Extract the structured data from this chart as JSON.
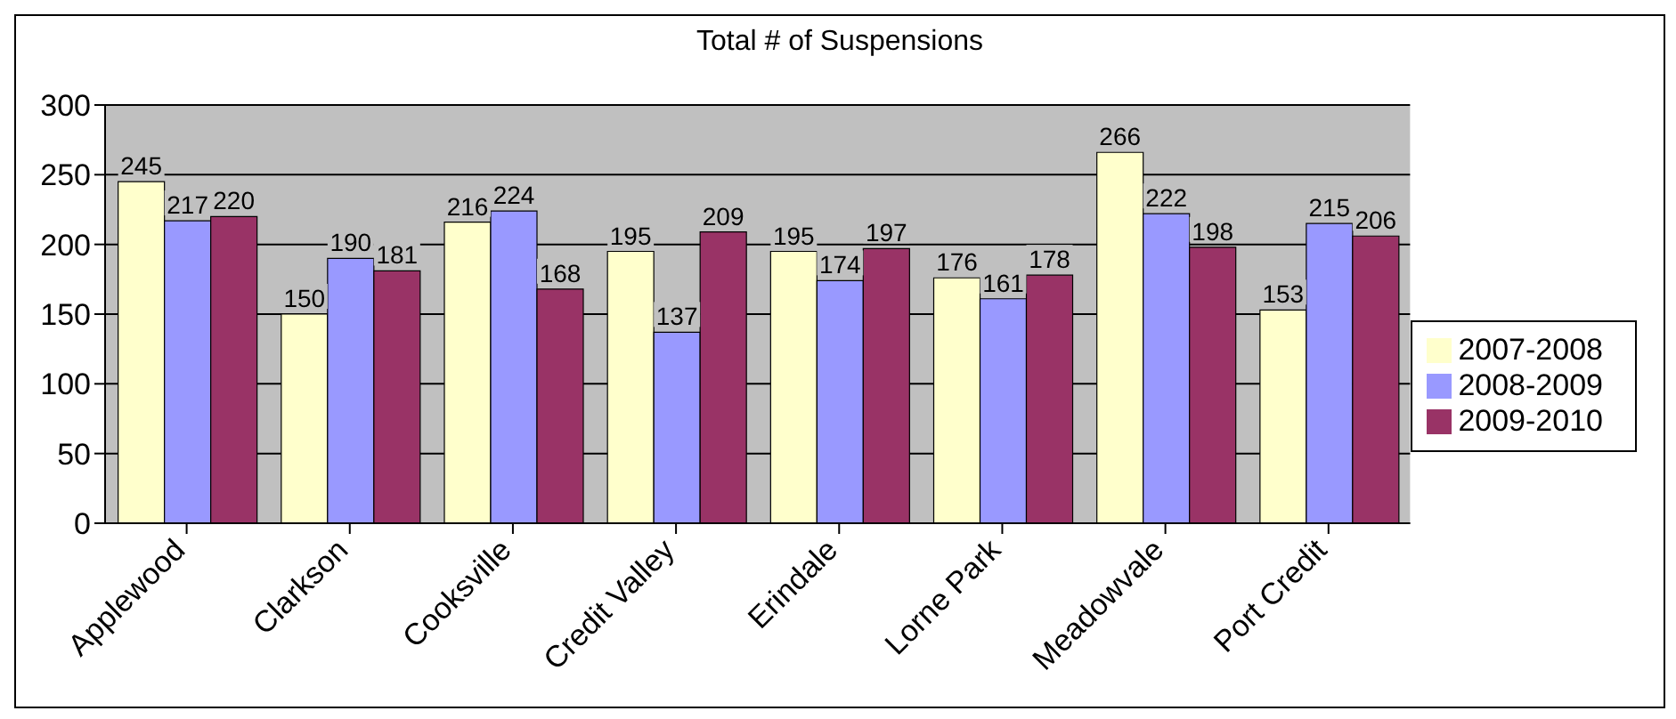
{
  "chart_data": {
    "type": "bar",
    "title": "Total # of Suspensions",
    "categories": [
      "Applewood",
      "Clarkson",
      "Cooksville",
      "Credit Valley",
      "Erindale",
      "Lorne Park",
      "Meadowvale",
      "Port Credit"
    ],
    "series": [
      {
        "name": "2007-2008",
        "color": "#ffffcc",
        "values": [
          245,
          150,
          216,
          195,
          195,
          176,
          266,
          153
        ]
      },
      {
        "name": "2008-2009",
        "color": "#9999ff",
        "values": [
          217,
          190,
          224,
          137,
          174,
          161,
          222,
          215
        ]
      },
      {
        "name": "2009-2010",
        "color": "#993366",
        "values": [
          220,
          181,
          168,
          209,
          197,
          178,
          198,
          206
        ]
      }
    ],
    "ylim": [
      0,
      300
    ],
    "yticks": [
      0,
      50,
      100,
      150,
      200,
      250,
      300
    ],
    "grid": "y",
    "legend": "right",
    "data_labels": true
  }
}
